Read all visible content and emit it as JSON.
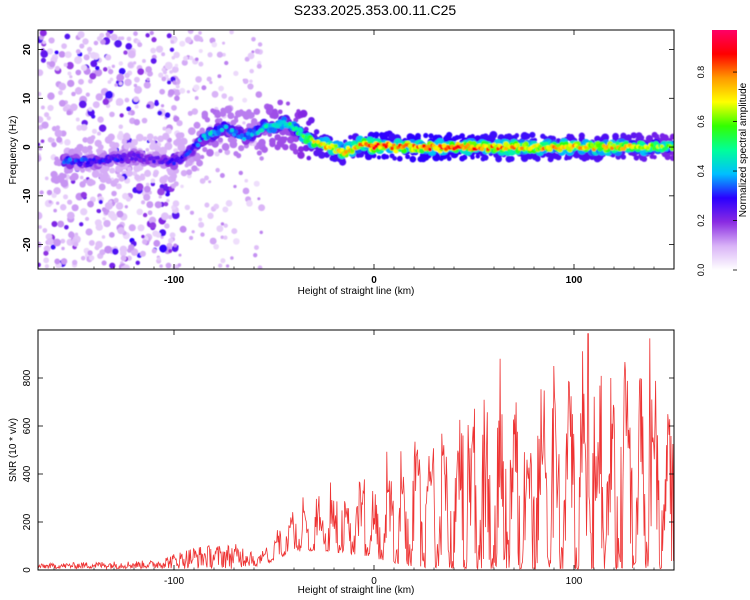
{
  "title": "S233.2025.353.00.11.C25",
  "chart_data": [
    {
      "type": "heatmap",
      "title": "S233.2025.353.00.11.C25",
      "xlabel": "Height of straight line (km)",
      "ylabel": "Frequency (Hz)",
      "xlim": [
        -168,
        150
      ],
      "ylim": [
        -25,
        24
      ],
      "xticks": [
        -100,
        0,
        100
      ],
      "yticks": [
        -20,
        -10,
        0,
        10,
        20
      ],
      "colorbar": {
        "label": "Normalized spectral amplitude",
        "range": [
          0,
          0.97
        ],
        "ticks": [
          "0.0",
          "0.2",
          "0.4",
          "0.6",
          "0.8"
        ],
        "colors": [
          "#ffffff",
          "#d9b3f7",
          "#8a2be2",
          "#2a00ff",
          "#00bfff",
          "#00ff99",
          "#33ff00",
          "#ffff00",
          "#ff9900",
          "#ff0000",
          "#ff0066"
        ]
      },
      "ridge": {
        "x": [
          -150,
          -140,
          -130,
          -120,
          -110,
          -100,
          -95,
          -90,
          -85,
          -80,
          -75,
          -70,
          -65,
          -60,
          -55,
          -50,
          -45,
          -40,
          -35,
          -30,
          -25,
          -20,
          -15,
          -10,
          -5,
          0,
          5,
          10,
          20,
          40,
          60,
          80,
          100,
          120,
          140,
          150
        ],
        "freq": [
          -3,
          -3,
          -2.5,
          -2,
          -2.5,
          -3,
          -2,
          0,
          2,
          3,
          4,
          3,
          2,
          3,
          4,
          4,
          5,
          4,
          2,
          1,
          0.5,
          0,
          -1,
          0,
          1,
          0,
          0.5,
          0,
          0,
          0,
          0,
          0,
          0,
          0,
          0,
          0
        ],
        "amplitude": [
          0.35,
          0.3,
          0.3,
          0.25,
          0.25,
          0.3,
          0.3,
          0.35,
          0.4,
          0.45,
          0.4,
          0.4,
          0.4,
          0.4,
          0.45,
          0.5,
          0.5,
          0.5,
          0.6,
          0.7,
          0.75,
          0.8,
          0.75,
          0.75,
          0.8,
          0.85,
          0.85,
          0.8,
          0.85,
          0.85,
          0.8,
          0.8,
          0.75,
          0.75,
          0.65,
          0.6
        ]
      }
    },
    {
      "type": "line",
      "xlabel": "Height of straight line (km)",
      "ylabel": "SNR (10 * v/v)",
      "xlim": [
        -168,
        150
      ],
      "ylim": [
        0,
        1000
      ],
      "xticks": [
        -100,
        0,
        100
      ],
      "yticks": [
        0,
        200,
        400,
        600,
        800
      ],
      "series": [
        {
          "name": "SNR",
          "color": "#ee3333",
          "envelope_x": [
            -168,
            -140,
            -110,
            -90,
            -70,
            -55,
            -45,
            -35,
            -25,
            -15,
            -5,
            5,
            15,
            25,
            35,
            45,
            55,
            65,
            75,
            85,
            95,
            105,
            115,
            125,
            135,
            145,
            150
          ],
          "envelope_max": [
            25,
            35,
            40,
            100,
            110,
            90,
            240,
            310,
            360,
            380,
            420,
            500,
            560,
            600,
            680,
            700,
            760,
            730,
            740,
            820,
            900,
            960,
            860,
            900,
            920,
            850,
            800
          ],
          "envelope_min": [
            5,
            5,
            5,
            5,
            5,
            20,
            60,
            80,
            80,
            70,
            60,
            40,
            20,
            10,
            10,
            5,
            5,
            5,
            5,
            5,
            5,
            5,
            5,
            5,
            5,
            5,
            5
          ],
          "peaks": [
            {
              "x": 107,
              "y": 985
            },
            {
              "x": 138,
              "y": 965
            },
            {
              "x": 63,
              "y": 880
            }
          ]
        }
      ]
    }
  ]
}
